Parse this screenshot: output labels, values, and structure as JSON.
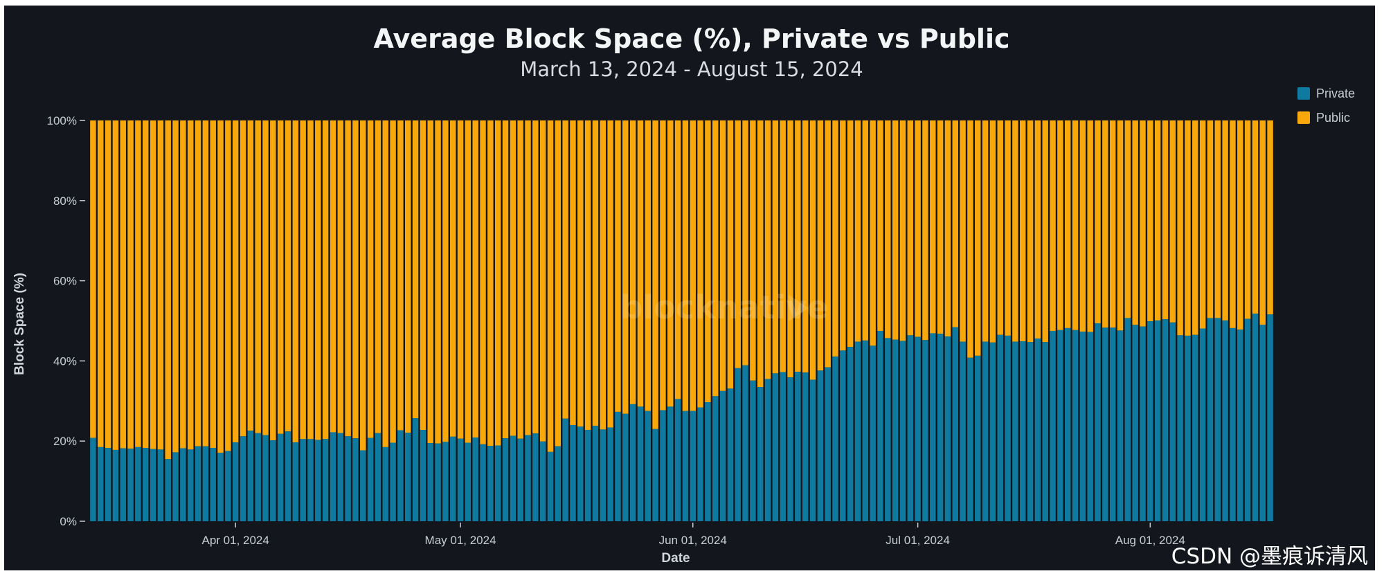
{
  "chart_data": {
    "type": "bar",
    "stacked": true,
    "normalized": true,
    "title": "Average Block Space (%), Private vs Public",
    "subtitle": "March 13, 2024 - August 15, 2024",
    "xlabel": "Date",
    "ylabel": "Block Space (%)",
    "ylim": [
      0,
      100
    ],
    "y_ticks": [
      "0%",
      "20%",
      "40%",
      "60%",
      "80%",
      "100%"
    ],
    "y_tick_values": [
      0,
      20,
      40,
      60,
      80,
      100
    ],
    "x_ticks": [
      "Apr 01, 2024",
      "May 01, 2024",
      "Jun 01, 2024",
      "Jul 01, 2024",
      "Aug 01, 2024"
    ],
    "x_tick_dates": [
      "2024-04-01",
      "2024-05-01",
      "2024-06-01",
      "2024-07-01",
      "2024-08-01"
    ],
    "x_start": "2024-03-13",
    "x_end": "2024-08-15",
    "grid": false,
    "legend_position": "top-right",
    "series": [
      {
        "name": "Private",
        "color": "#0e7aa0",
        "values": [
          20.8,
          18.5,
          18.3,
          17.8,
          18.2,
          18.1,
          18.5,
          18.3,
          18,
          17.9,
          15.5,
          17.2,
          18.2,
          17.9,
          18.7,
          18.7,
          18.3,
          17.1,
          17.5,
          19.7,
          21.2,
          22.6,
          22,
          21.5,
          20.2,
          21.8,
          22.4,
          19.7,
          20.5,
          20.5,
          20.3,
          20.5,
          22.2,
          22,
          21.2,
          20.7,
          17.7,
          20.8,
          22,
          18.5,
          19.6,
          22.7,
          22.1,
          25.7,
          22.8,
          19.5,
          19.4,
          19.8,
          21.1,
          20.6,
          19.6,
          20.9,
          19.2,
          18.8,
          18.9,
          20.7,
          21.3,
          20.6,
          21.5,
          21.9,
          19.9,
          17.3,
          18.7,
          25.6,
          24,
          23.6,
          22.8,
          23.8,
          22.9,
          23.4,
          27.3,
          26.8,
          29.2,
          28.6,
          27.5,
          23,
          27.7,
          28.6,
          30.5,
          27.5,
          27.5,
          28.4,
          29.7,
          31.2,
          32.5,
          33.1,
          38.2,
          38.9,
          35.1,
          33.5,
          35.5,
          36.9,
          37.2,
          35.9,
          37.3,
          37.1,
          35.3,
          37.6,
          38.4,
          41.1,
          42.6,
          43.5,
          44.8,
          45.1,
          43.8,
          47.5,
          45.7,
          45.3,
          45,
          46.4,
          46,
          45.2,
          46.9,
          46.8,
          46.1,
          48.4,
          44.8,
          40.8,
          41.3,
          44.8,
          44.6,
          46.5,
          46.3,
          44.8,
          44.9,
          44.7,
          45.6,
          44.7,
          47.5,
          47.7,
          48.2,
          47.7,
          47.3,
          47.2,
          49.4,
          48.3,
          48.3,
          47.6,
          50.7,
          49,
          48.6,
          49.9,
          50.1,
          50.4,
          49.6,
          46.4,
          46.3,
          46.5,
          48.1,
          50.7,
          50.7,
          50.1,
          48.2,
          47.8,
          50.5,
          51.8,
          49,
          51.6
        ]
      },
      {
        "name": "Public",
        "color": "#f9a80c",
        "values": [
          79.2,
          81.5,
          81.7,
          82.2,
          81.8,
          81.9,
          81.5,
          81.7,
          82,
          82.1,
          84.5,
          82.8,
          81.8,
          82.1,
          81.3,
          81.3,
          81.7,
          82.9,
          82.5,
          80.3,
          78.8,
          77.4,
          78,
          78.5,
          79.8,
          78.2,
          77.6,
          80.3,
          79.5,
          79.5,
          79.7,
          79.5,
          77.8,
          78,
          78.8,
          79.3,
          82.3,
          79.2,
          78,
          81.5,
          80.4,
          77.3,
          77.9,
          74.3,
          77.2,
          80.5,
          80.6,
          80.2,
          78.9,
          79.4,
          80.4,
          79.1,
          80.8,
          81.2,
          81.1,
          79.3,
          78.7,
          79.4,
          78.5,
          78.1,
          80.1,
          82.7,
          81.3,
          74.4,
          76,
          76.4,
          77.2,
          76.2,
          77.1,
          76.6,
          72.7,
          73.2,
          70.8,
          71.4,
          72.5,
          77,
          72.3,
          71.4,
          69.5,
          72.5,
          72.5,
          71.6,
          70.3,
          68.8,
          67.5,
          66.9,
          61.8,
          61.1,
          64.9,
          66.5,
          64.5,
          63.1,
          62.8,
          64.1,
          62.7,
          62.9,
          64.7,
          62.4,
          61.6,
          58.9,
          57.4,
          56.5,
          55.2,
          54.9,
          56.2,
          52.5,
          54.3,
          54.7,
          55,
          53.6,
          54,
          54.8,
          53.1,
          53.2,
          53.9,
          51.6,
          55.2,
          59.2,
          58.7,
          55.2,
          55.4,
          53.5,
          53.7,
          55.2,
          55.1,
          55.3,
          54.4,
          55.3,
          52.5,
          52.3,
          51.8,
          52.3,
          52.7,
          52.8,
          50.6,
          51.7,
          51.7,
          52.4,
          49.3,
          51,
          51.4,
          50.1,
          49.9,
          49.6,
          50.4,
          53.6,
          53.7,
          53.5,
          51.9,
          49.3,
          49.3,
          49.9,
          51.8,
          52.2,
          49.5,
          48.2,
          51,
          48.4
        ]
      }
    ]
  },
  "watermark": "blocknative",
  "caption": "CSDN @墨痕诉清风",
  "background_color": "#13171d"
}
